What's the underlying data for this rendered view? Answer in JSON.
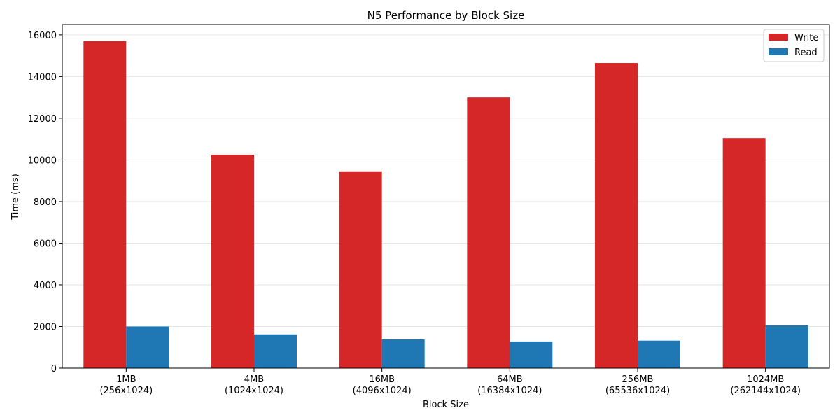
{
  "chart_data": {
    "type": "bar",
    "title": "N5 Performance by Block Size",
    "xlabel": "Block Size",
    "ylabel": "Time (ms)",
    "categories": [
      [
        "1MB",
        "(256x1024)"
      ],
      [
        "4MB",
        "(1024x1024)"
      ],
      [
        "16MB",
        "(4096x1024)"
      ],
      [
        "64MB",
        "(16384x1024)"
      ],
      [
        "256MB",
        "(65536x1024)"
      ],
      [
        "1024MB",
        "(262144x1024)"
      ]
    ],
    "series": [
      {
        "name": "Write",
        "color": "#d62728",
        "values": [
          15700,
          10250,
          9450,
          13000,
          14650,
          11050
        ]
      },
      {
        "name": "Read",
        "color": "#1f77b4",
        "values": [
          2000,
          1620,
          1380,
          1280,
          1320,
          2050
        ]
      }
    ],
    "ylim": [
      0,
      16500
    ],
    "yticks": [
      0,
      2000,
      4000,
      6000,
      8000,
      10000,
      12000,
      14000,
      16000
    ],
    "grid": "y",
    "legend": "top-right"
  }
}
